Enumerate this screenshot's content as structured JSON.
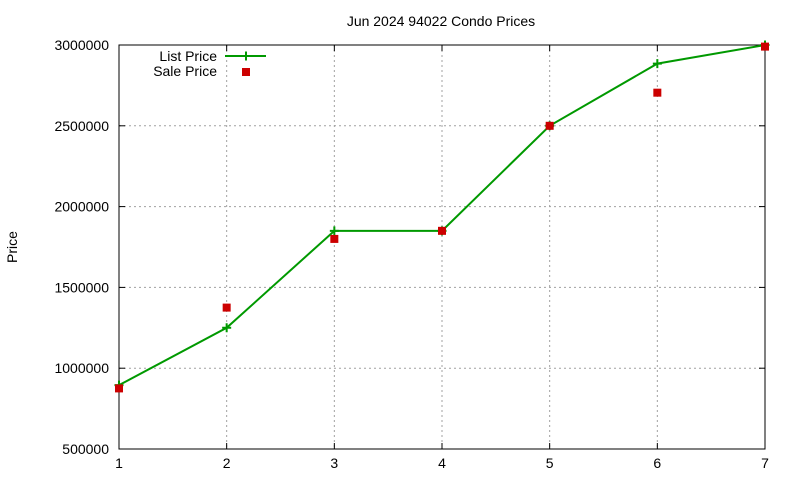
{
  "chart_data": {
    "type": "line",
    "title": "Jun 2024 94022 Condo Prices",
    "xlabel": "",
    "ylabel": "Price",
    "xlim": [
      1,
      7
    ],
    "ylim": [
      500000,
      3000000
    ],
    "x_ticks": [
      1,
      2,
      3,
      4,
      5,
      6,
      7
    ],
    "y_ticks": [
      500000,
      1000000,
      1500000,
      2000000,
      2500000,
      3000000
    ],
    "grid": true,
    "legend": "top-left",
    "series": [
      {
        "name": "List Price",
        "style": "line+plus",
        "color": "#009900",
        "x": [
          1,
          2,
          3,
          4,
          5,
          6,
          7
        ],
        "y": [
          895000,
          1250000,
          1850000,
          1850000,
          2500000,
          2885000,
          3000000
        ]
      },
      {
        "name": "Sale Price",
        "style": "square",
        "color": "#cc0000",
        "x": [
          1,
          2,
          3,
          4,
          5,
          6,
          7
        ],
        "y": [
          875000,
          1375000,
          1800000,
          1850000,
          2500000,
          2705000,
          2990000
        ]
      }
    ]
  }
}
